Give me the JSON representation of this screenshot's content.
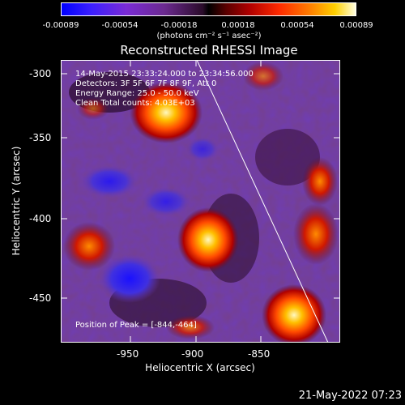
{
  "colorbar": {
    "ticks": [
      "-0.00089",
      "-0.00054",
      "-0.00018",
      "0.00018",
      "0.00054",
      "0.00089"
    ],
    "unit_label": "(photons cm⁻² s⁻¹ asec⁻²)"
  },
  "plot": {
    "title": "Reconstructed RHESSI Image",
    "xlabel": "Heliocentric X (arcsec)",
    "ylabel": "Heliocentric Y (arcsec)",
    "x_ticks": [
      "-950",
      "-900",
      "-850"
    ],
    "y_ticks": [
      "-300",
      "-350",
      "-400",
      "-450"
    ],
    "annotations": {
      "time_range": "14-May-2015 23:33:24.000 to 23:34:56.000",
      "detectors": "Detectors: 3F 5F 6F 7F 8F 9F, Att 0",
      "energy": "Energy Range: 25.0 - 50.0 keV",
      "clean": "Clean     Total counts: 4.03E+03",
      "peak": "Position of Peak = [-844,-464]"
    }
  },
  "footer": {
    "date": "21-May-2022 07:23"
  },
  "colors": {
    "background": "#000000",
    "limb_line": "#ffffff"
  }
}
